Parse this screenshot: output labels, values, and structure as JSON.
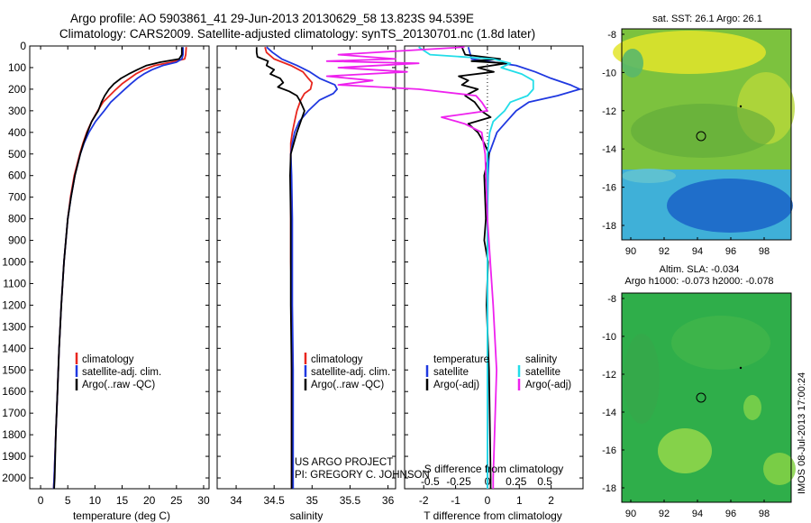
{
  "header": {
    "line1": "Argo profile: AO 5903861_41 29-Jun-2013 20130629_58 13.823S 94.539E",
    "line2": "Climatology: CARS2009. Satellite-adjusted climatology: synTS_20130701.nc (1.8d later)"
  },
  "colors": {
    "climatology": "#e8261e",
    "satellite": "#1f38e0",
    "argo": "#000000",
    "sat_s": "#22dde8",
    "argo_s": "#ee22ee"
  },
  "chart_data": [
    {
      "type": "line",
      "title": "",
      "xlabel": "temperature (deg C)",
      "ylabel": "",
      "xlim": [
        -2,
        31
      ],
      "ylim": [
        2050,
        0
      ],
      "xticks": [
        "0",
        "5",
        "10",
        "15",
        "20",
        "25",
        "30"
      ],
      "yticks": [
        "0",
        "100",
        "200",
        "300",
        "400",
        "500",
        "600",
        "700",
        "800",
        "900",
        "1000",
        "1100",
        "1200",
        "1300",
        "1400",
        "1500",
        "1600",
        "1700",
        "1800",
        "1900",
        "2000"
      ],
      "legend": [
        "climatology",
        "satellite-adj. clim.",
        "Argo(..raw -QC)"
      ],
      "series": [
        {
          "name": "climatology",
          "depth": [
            5,
            40,
            60,
            75,
            90,
            110,
            130,
            150,
            175,
            200,
            230,
            260,
            300,
            350,
            400,
            450,
            500,
            600,
            700,
            800,
            1000,
            1200,
            1400,
            1600,
            1800,
            2000,
            2050
          ],
          "values": [
            26.8,
            26.7,
            26.5,
            24,
            21,
            19,
            17.5,
            16.4,
            15,
            13.9,
            12.7,
            11.5,
            10.5,
            9.4,
            8.5,
            7.8,
            7.2,
            6.2,
            5.5,
            5.0,
            4.3,
            3.8,
            3.4,
            3.1,
            2.8,
            2.5,
            2.4
          ]
        },
        {
          "name": "satellite-adj. clim.",
          "depth": [
            5,
            40,
            60,
            75,
            90,
            110,
            130,
            150,
            175,
            200,
            230,
            260,
            300,
            350,
            400,
            450,
            500,
            600,
            700,
            800,
            1000,
            1200,
            1400,
            1600,
            1800,
            2000,
            2050
          ],
          "values": [
            26.2,
            26.2,
            26.0,
            25,
            22.5,
            20.5,
            19,
            17.8,
            16.6,
            15.5,
            14.2,
            12.9,
            11.7,
            10.1,
            8.9,
            8.0,
            7.3,
            6.3,
            5.6,
            5.0,
            4.3,
            3.8,
            3.4,
            3.1,
            2.8,
            2.5,
            2.4
          ]
        },
        {
          "name": "Argo(..raw -QC)",
          "depth": [
            5,
            40,
            60,
            75,
            90,
            110,
            130,
            150,
            175,
            200,
            230,
            260,
            300,
            350,
            400,
            450,
            500,
            600,
            700,
            800,
            1000,
            1200,
            1400,
            1600,
            1800,
            2000,
            2050
          ],
          "values": [
            26.0,
            26.0,
            25.5,
            22,
            19.5,
            17.8,
            16.2,
            14.8,
            13.5,
            12.6,
            11.8,
            11.2,
            10.6,
            9.4,
            8.6,
            7.9,
            7.3,
            6.3,
            5.6,
            5.0,
            4.3,
            3.8,
            3.4,
            3.1,
            2.8,
            2.6,
            2.5
          ]
        }
      ]
    },
    {
      "type": "line",
      "xlabel": "salinity",
      "xlim": [
        33.75,
        36.1
      ],
      "ylim": [
        2050,
        0
      ],
      "xticks": [
        "34",
        "34.5",
        "35",
        "35.5",
        "36"
      ],
      "legend": [
        "climatology",
        "satellite-adj. clim.",
        "Argo(..raw -QC)"
      ],
      "series": [
        {
          "name": "climatology",
          "depth": [
            5,
            30,
            60,
            90,
            120,
            150,
            170,
            200,
            220,
            250,
            300,
            350,
            400,
            450,
            500,
            600,
            800,
            1000,
            1200,
            1500,
            1800,
            2000,
            2050
          ],
          "values": [
            34.38,
            34.4,
            34.5,
            34.72,
            34.88,
            34.95,
            35.0,
            34.98,
            34.9,
            34.85,
            34.8,
            34.77,
            34.74,
            34.72,
            34.72,
            34.72,
            34.72,
            34.72,
            34.73,
            34.73,
            34.73,
            34.73,
            34.73
          ]
        },
        {
          "name": "satellite-adj. clim.",
          "depth": [
            5,
            30,
            60,
            90,
            120,
            150,
            180,
            200,
            220,
            250,
            300,
            350,
            400,
            450,
            500,
            600,
            800,
            1000,
            1200,
            1500,
            1800,
            2000,
            2050
          ],
          "values": [
            34.4,
            34.48,
            34.6,
            34.8,
            34.97,
            35.1,
            35.3,
            35.33,
            35.28,
            35.1,
            34.95,
            34.83,
            34.77,
            34.74,
            34.72,
            34.73,
            34.74,
            34.74,
            34.74,
            34.75,
            34.75,
            34.75,
            34.75
          ]
        },
        {
          "name": "Argo(..raw -QC)",
          "depth": [
            5,
            30,
            50,
            70,
            90,
            110,
            130,
            150,
            170,
            190,
            210,
            230,
            260,
            300,
            350,
            400,
            450,
            500,
            600,
            800,
            1000,
            1200,
            1500,
            1800,
            2000,
            2050
          ],
          "values": [
            34.27,
            34.27,
            34.28,
            34.42,
            34.4,
            34.5,
            34.45,
            34.58,
            34.62,
            34.55,
            34.7,
            34.8,
            34.85,
            34.9,
            34.85,
            34.8,
            34.76,
            34.72,
            34.71,
            34.72,
            34.72,
            34.72,
            34.73,
            34.73,
            34.73,
            34.73
          ]
        }
      ]
    },
    {
      "type": "line",
      "xlabel": "T difference from climatology",
      "xlabel2": "S difference from climatology",
      "xlim": [
        -2.6,
        3.0
      ],
      "ylim": [
        2050,
        0
      ],
      "xticks": [
        "-2",
        "-1",
        "0",
        "1",
        "2"
      ],
      "xticks2": [
        "-0.5",
        "-0.25",
        "0",
        "0.25",
        "0.5"
      ],
      "legend_headers": [
        "temperature",
        "salinity"
      ],
      "legend": [
        "satellite",
        "Argo(-adj)",
        "satellite",
        "Argo(-adj)"
      ],
      "series": [
        {
          "name": "T satellite",
          "depth": [
            5,
            60,
            90,
            120,
            150,
            180,
            200,
            230,
            260,
            300,
            350,
            400,
            500,
            600,
            800,
            1000,
            1500,
            2000,
            2050
          ],
          "values": [
            -0.6,
            -0.5,
            0.9,
            1.5,
            2.0,
            2.6,
            2.9,
            2.2,
            1.3,
            0.9,
            0.6,
            0.3,
            0.05,
            0.02,
            0.0,
            0.0,
            0.0,
            0.0,
            0.0
          ]
        },
        {
          "name": "T Argo(-adj)",
          "depth": [
            5,
            40,
            60,
            70,
            80,
            100,
            120,
            140,
            160,
            180,
            200,
            230,
            260,
            300,
            330,
            360,
            400,
            450,
            500,
            600,
            800,
            900,
            1000,
            1200,
            1500,
            2000,
            2050
          ],
          "values": [
            -0.8,
            -0.7,
            0.4,
            -0.5,
            0.6,
            -0.3,
            0.2,
            -0.9,
            -0.6,
            -0.8,
            -0.3,
            -0.7,
            -0.4,
            -0.2,
            0.1,
            -0.6,
            -0.3,
            -0.1,
            0.05,
            -0.1,
            -0.05,
            -0.1,
            0.02,
            -0.03,
            0.05,
            0.1,
            0.1
          ]
        },
        {
          "name": "S satellite",
          "depth": [
            5,
            40,
            60,
            80,
            100,
            130,
            160,
            200,
            230,
            260,
            300,
            350,
            400,
            500,
            1000,
            2000,
            2050
          ],
          "values": [
            -0.6,
            -0.5,
            0.05,
            0.2,
            0.12,
            0.3,
            0.4,
            0.4,
            0.35,
            0.2,
            0.15,
            0.05,
            0.02,
            0.0,
            0.0,
            0.0,
            0.0
          ]
        },
        {
          "name": "S Argo(-adj)",
          "depth": [
            5,
            40,
            60,
            70,
            80,
            100,
            120,
            140,
            160,
            180,
            200,
            230,
            260,
            300,
            330,
            360,
            400,
            500,
            800,
            1200,
            1500,
            2000,
            2050
          ],
          "values": [
            -0.2,
            -1.3,
            -0.8,
            -1.4,
            -0.6,
            -1.3,
            -0.7,
            -1.4,
            -1.0,
            -1.3,
            -0.6,
            -0.1,
            -0.05,
            0.0,
            -0.4,
            -0.2,
            -0.05,
            -0.02,
            0.0,
            0.05,
            0.08,
            0.05,
            0.05
          ]
        }
      ]
    }
  ],
  "maps": {
    "sst": {
      "title": "sat. SST: 26.1 Argo: 26.1",
      "xticks": [
        "90",
        "92",
        "94",
        "96",
        "98"
      ],
      "yticks": [
        "-8",
        "-10",
        "-12",
        "-14",
        "-16",
        "-18"
      ]
    },
    "sla": {
      "title1": "Altim. SLA: -0.034",
      "title2": "Argo h1000: -0.073 h2000: -0.078",
      "xticks": [
        "90",
        "92",
        "94",
        "96",
        "98"
      ],
      "yticks": [
        "-8",
        "-10",
        "-12",
        "-14",
        "-16",
        "-18"
      ]
    }
  },
  "credits": {
    "project": "US ARGO PROJECT",
    "pi": "PI: GREGORY C. JOHNSON",
    "stamp": "IMOS 08-Jul-2013 17:00:24"
  }
}
